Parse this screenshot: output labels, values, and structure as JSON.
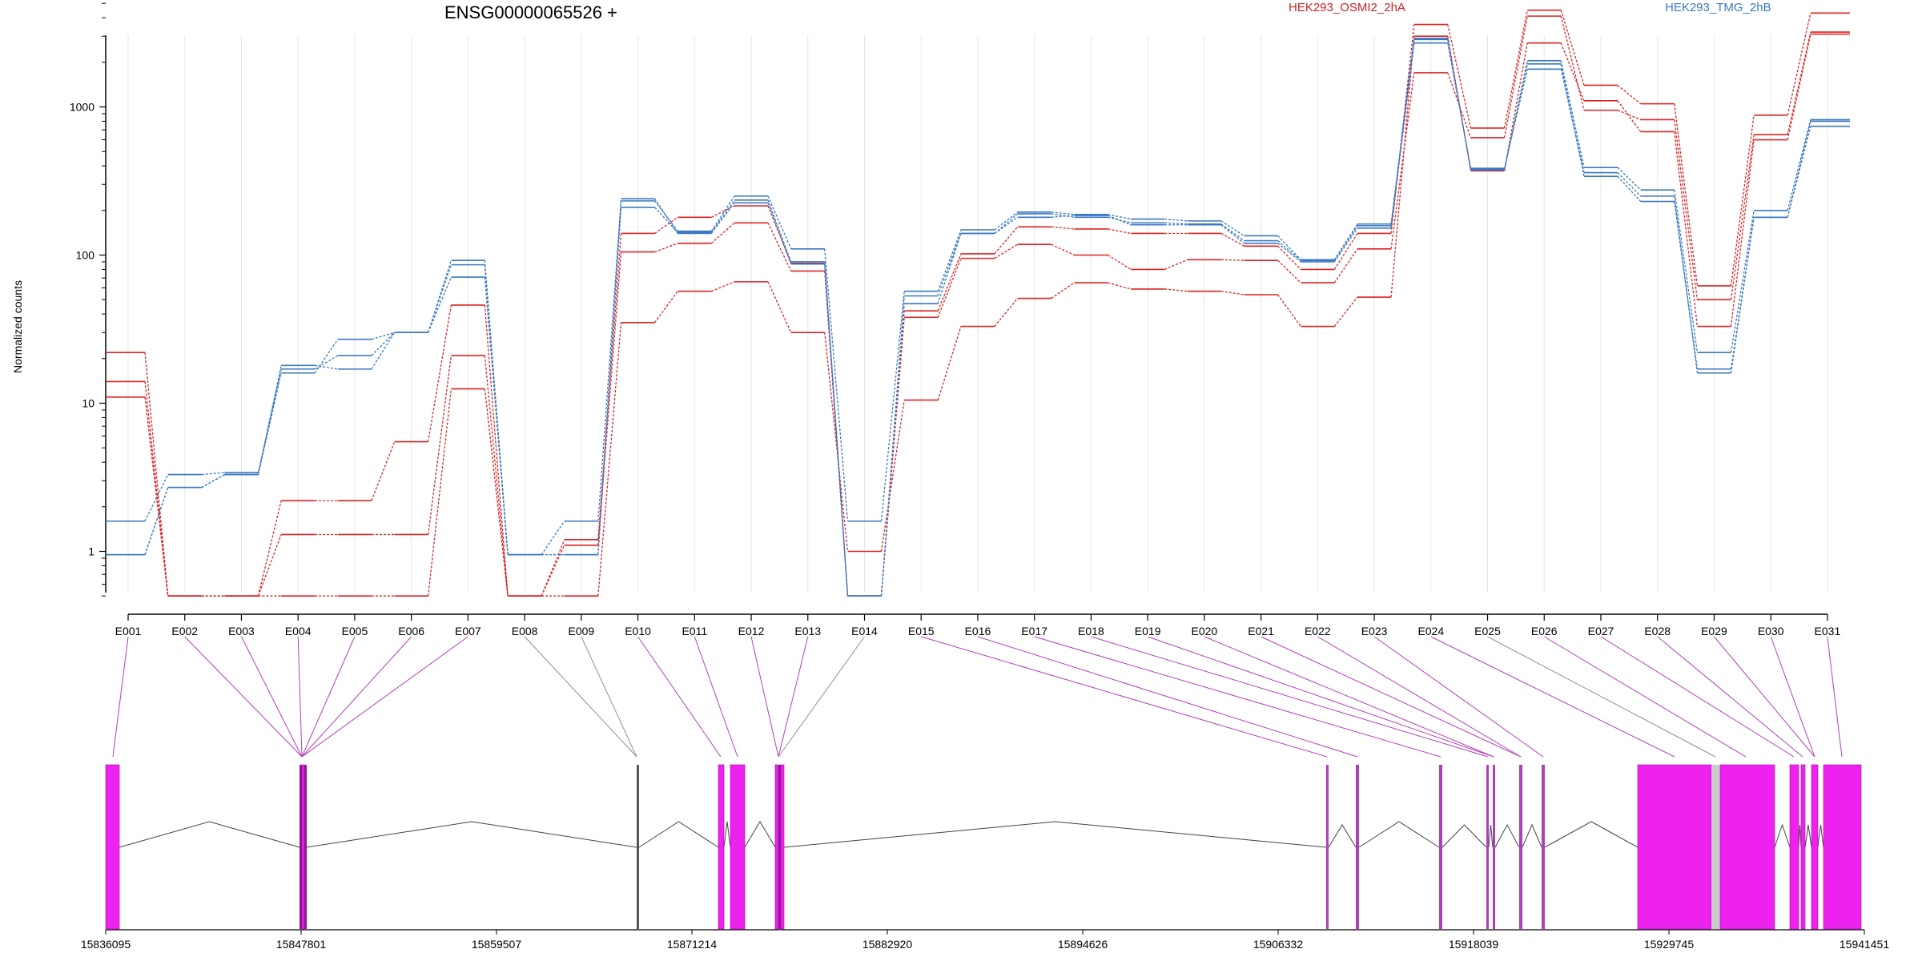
{
  "chart_data": {
    "type": "line",
    "title": "ENSG00000065526 +",
    "ylabel": "Normalized counts",
    "yscale": "log",
    "yticks": [
      1,
      10,
      100,
      1000
    ],
    "ytick_labels": [
      "1",
      "10",
      "100",
      "1000"
    ],
    "ylim": [
      0.5,
      6000
    ],
    "categories": [
      "E001",
      "E002",
      "E003",
      "E004",
      "E005",
      "E006",
      "E007",
      "E008",
      "E009",
      "E010",
      "E011",
      "E012",
      "E013",
      "E014",
      "E015",
      "E016",
      "E017",
      "E018",
      "E019",
      "E020",
      "E021",
      "E022",
      "E023",
      "E024",
      "E025",
      "E026",
      "E027",
      "E028",
      "E029",
      "E030",
      "E031"
    ],
    "legend": [
      {
        "label": "HEK293_OSMI2_2hA",
        "color": "#dd2222"
      },
      {
        "label": "HEK293_TMG_2hB",
        "color": "#3a78c2"
      }
    ],
    "series": [
      {
        "group": "HEK293_OSMI2_2hA",
        "color": "#dd2222",
        "values": [
          22,
          0.5,
          0.5,
          2.2,
          2.2,
          5.5,
          46,
          0.5,
          1.2,
          140,
          180,
          215,
          88,
          0.5,
          42,
          102,
          155,
          150,
          140,
          140,
          115,
          80,
          140,
          3600,
          720,
          4500,
          1400,
          1050,
          62,
          880,
          4300
        ]
      },
      {
        "group": "HEK293_OSMI2_2hA",
        "color": "#dd2222",
        "values": [
          14,
          0.5,
          0.5,
          1.3,
          1.3,
          1.3,
          21,
          0.5,
          1.1,
          105,
          120,
          165,
          78,
          0.5,
          38,
          95,
          118,
          100,
          80,
          93,
          92,
          65,
          110,
          1700,
          620,
          4100,
          950,
          820,
          50,
          650,
          3200
        ]
      },
      {
        "group": "HEK293_OSMI2_2hA",
        "color": "#dd2222",
        "values": [
          11,
          0.5,
          0.5,
          0.5,
          0.5,
          0.5,
          12.5,
          0.5,
          0.5,
          35,
          57,
          66,
          30,
          1.0,
          10.5,
          33,
          51,
          65,
          59,
          57,
          54,
          33,
          52,
          3000,
          370,
          2700,
          1100,
          680,
          33,
          600,
          3100
        ]
      },
      {
        "group": "HEK293_TMG_2hB",
        "color": "#3a78c2",
        "values": [
          1.6,
          3.3,
          3.4,
          17,
          21,
          30,
          92,
          0.95,
          1.6,
          232,
          145,
          250,
          110,
          1.6,
          57,
          148,
          195,
          188,
          175,
          170,
          135,
          93,
          162,
          2900,
          375,
          2050,
          390,
          275,
          22,
          200,
          820
        ]
      },
      {
        "group": "HEK293_TMG_2hB",
        "color": "#3a78c2",
        "values": [
          0.95,
          2.7,
          3.3,
          16,
          27,
          30,
          86,
          0.95,
          0.95,
          210,
          142,
          235,
          90,
          0.5,
          47,
          140,
          180,
          185,
          160,
          160,
          120,
          90,
          152,
          2700,
          385,
          1800,
          360,
          250,
          16,
          180,
          740
        ]
      },
      {
        "group": "HEK293_TMG_2hB",
        "color": "#3a78c2",
        "values": [
          0.95,
          2.7,
          3.3,
          18,
          17,
          30,
          71,
          0.95,
          0.95,
          240,
          140,
          225,
          87,
          0.5,
          53,
          140,
          190,
          180,
          165,
          162,
          125,
          92,
          158,
          2850,
          380,
          1950,
          340,
          230,
          17,
          180,
          800
        ]
      }
    ],
    "gene_model": {
      "coordinate_ticks": [
        "15836095",
        "15847801",
        "15859507",
        "15871214",
        "15882920",
        "15894626",
        "15906332",
        "15918039",
        "15929745",
        "15941451"
      ],
      "exon_color": "#ee22ee",
      "connector_color": "#b040b8"
    }
  }
}
